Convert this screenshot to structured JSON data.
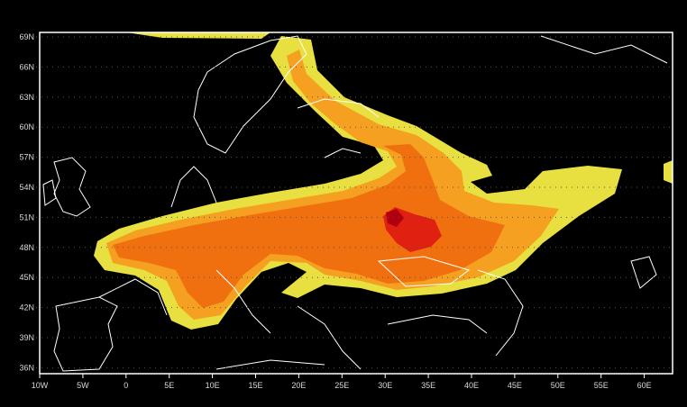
{
  "map": {
    "lat_labels": [
      "69N",
      "66N",
      "63N",
      "60N",
      "57N",
      "54N",
      "51N",
      "48N",
      "45N",
      "42N",
      "39N",
      "36N"
    ],
    "lon_labels": [
      "10W",
      "5W",
      "0",
      "5E",
      "10E",
      "15E",
      "20E",
      "25E",
      "30E",
      "35E",
      "40E",
      "45E",
      "50E",
      "55E",
      "60E"
    ],
    "extent": {
      "lon": [
        -10,
        63
      ],
      "lat": [
        35.5,
        69.5
      ]
    },
    "colors": {
      "background": "#000000",
      "coastline": "#ffffff",
      "low": "#e8e040",
      "medium": "#f5a020",
      "high": "#f07010",
      "very_high": "#e02010",
      "peak": "#b00010"
    }
  }
}
